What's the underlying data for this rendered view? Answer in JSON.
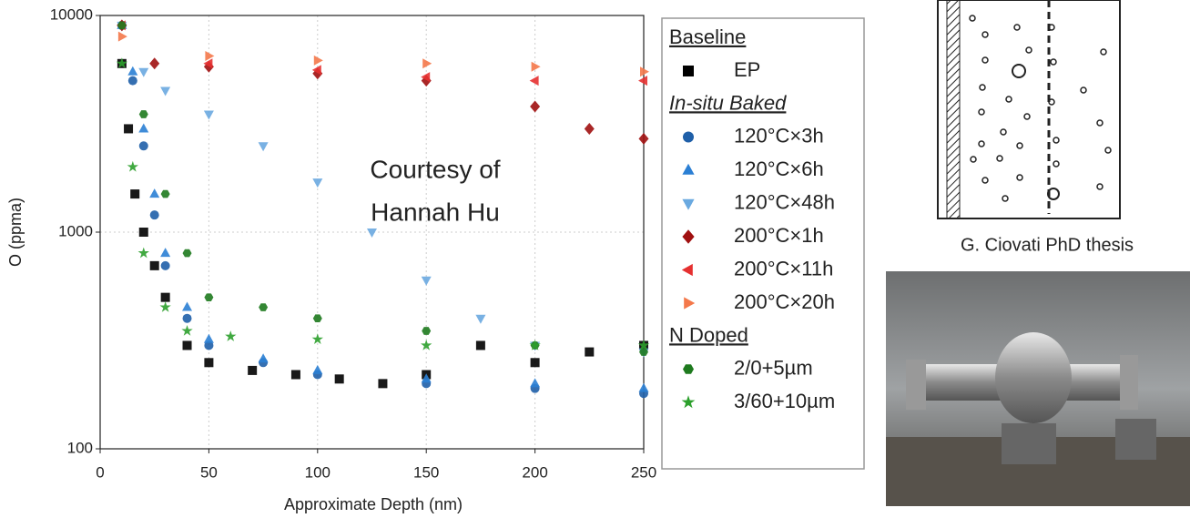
{
  "chart_data": {
    "type": "scatter",
    "x_label": "Approximate Depth (nm)",
    "y_label": "O (ppma)",
    "xlim": [
      0,
      250
    ],
    "ylim": [
      100,
      10000
    ],
    "log_y": true,
    "grid": true,
    "xticks": [
      0,
      50,
      100,
      150,
      200,
      250
    ],
    "yticks": [
      100,
      1000,
      10000
    ],
    "groups": [
      {
        "title": "Baseline",
        "series": [
          {
            "name": "EP",
            "color": "#000000",
            "marker": "square",
            "x": [
              10,
              13,
              16,
              20,
              25,
              30,
              40,
              50,
              70,
              90,
              110,
              130,
              150,
              175,
              200,
              225,
              250
            ],
            "values": [
              6000,
              3000,
              1500,
              1000,
              700,
              500,
              300,
              250,
              230,
              220,
              210,
              200,
              220,
              300,
              250,
              280,
              300
            ]
          }
        ]
      },
      {
        "title": "In-situ Baked",
        "series": [
          {
            "name": "120°C×3h",
            "color": "#1f5fa8",
            "marker": "circle",
            "x": [
              10,
              15,
              20,
              25,
              30,
              40,
              50,
              75,
              100,
              150,
              200,
              250
            ],
            "values": [
              9000,
              5000,
              2500,
              1200,
              700,
              400,
              300,
              250,
              220,
              200,
              190,
              180
            ]
          },
          {
            "name": "120°C×6h",
            "color": "#2b7fd4",
            "marker": "triangle-up",
            "x": [
              10,
              15,
              20,
              25,
              30,
              40,
              50,
              75,
              100,
              150,
              200,
              250
            ],
            "values": [
              9000,
              5500,
              3000,
              1500,
              800,
              450,
              320,
              260,
              230,
              210,
              200,
              190
            ]
          },
          {
            "name": "120°C×48h",
            "color": "#6aa9e0",
            "marker": "triangle-down",
            "x": [
              10,
              20,
              30,
              50,
              75,
              100,
              125,
              150,
              175,
              200,
              250
            ],
            "values": [
              9000,
              5500,
              4500,
              3500,
              2500,
              1700,
              1000,
              600,
              400,
              300,
              280
            ]
          },
          {
            "name": "200°C×1h",
            "color": "#a01010",
            "marker": "diamond",
            "x": [
              10,
              25,
              50,
              100,
              150,
              200,
              225,
              250
            ],
            "values": [
              9000,
              6000,
              5800,
              5400,
              5000,
              3800,
              3000,
              2700
            ]
          },
          {
            "name": "200°C×11h",
            "color": "#e53030",
            "marker": "triangle-left",
            "x": [
              10,
              50,
              100,
              150,
              200,
              250
            ],
            "values": [
              9000,
              6000,
              5600,
              5200,
              5000,
              5000
            ]
          },
          {
            "name": "200°C×20h",
            "color": "#f4784a",
            "marker": "triangle-right",
            "x": [
              10,
              50,
              100,
              150,
              200,
              250
            ],
            "values": [
              8000,
              6500,
              6200,
              6000,
              5800,
              5500
            ]
          }
        ]
      },
      {
        "title": "N Doped",
        "series": [
          {
            "name": "2/0+5µm",
            "color": "#1e7a1e",
            "marker": "hexagon",
            "x": [
              10,
              20,
              30,
              40,
              50,
              75,
              100,
              150,
              200,
              250
            ],
            "values": [
              9000,
              3500,
              1500,
              800,
              500,
              450,
              400,
              350,
              300,
              280
            ]
          },
          {
            "name": "3/60+10µm",
            "color": "#2ca02c",
            "marker": "star",
            "x": [
              10,
              15,
              20,
              30,
              40,
              60,
              100,
              150,
              200,
              250
            ],
            "values": [
              6000,
              2000,
              800,
              450,
              350,
              330,
              320,
              300,
              300,
              300
            ]
          }
        ]
      }
    ]
  },
  "annotation": {
    "line1": "Courtesy of",
    "line2": "Hannah Hu"
  },
  "figure_caption": "G. Ciovati PhD thesis"
}
